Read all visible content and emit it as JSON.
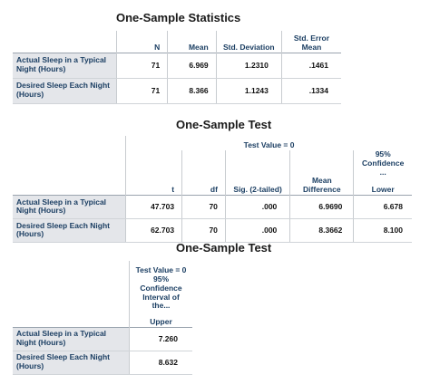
{
  "table1": {
    "title": "One-Sample Statistics",
    "columns": [
      "N",
      "Mean",
      "Std. Deviation",
      "Std. Error Mean"
    ],
    "rows": [
      {
        "label": "Actual Sleep in a Typical Night (Hours)",
        "n": "71",
        "mean": "6.969",
        "sd": "1.2310",
        "se": ".1461"
      },
      {
        "label": "Desired Sleep Each Night (Hours)",
        "n": "71",
        "mean": "8.366",
        "sd": "1.1243",
        "se": ".1334"
      }
    ]
  },
  "table2": {
    "title": "One-Sample Test",
    "test_value": "Test Value = 0",
    "columns": [
      "t",
      "df",
      "Sig. (2-tailed)",
      "Mean Difference"
    ],
    "ci_header": "95% Confidence ...",
    "ci_sub": "Lower",
    "rows": [
      {
        "label": "Actual Sleep in a Typical Night (Hours)",
        "t": "47.703",
        "df": "70",
        "sig": ".000",
        "md": "6.9690",
        "lower": "6.678"
      },
      {
        "label": "Desired Sleep Each Night (Hours)",
        "t": "62.703",
        "df": "70",
        "sig": ".000",
        "md": "8.3662",
        "lower": "8.100"
      }
    ]
  },
  "table3": {
    "title": "One-Sample Test",
    "test_value": "Test Value = 0",
    "ci_header": "95% Confidence Interval of the...",
    "ci_sub": "Upper",
    "rows": [
      {
        "label": "Actual Sleep in a Typical Night (Hours)",
        "upper": "7.260"
      },
      {
        "label": "Desired Sleep Each Night (Hours)",
        "upper": "8.632"
      }
    ]
  }
}
